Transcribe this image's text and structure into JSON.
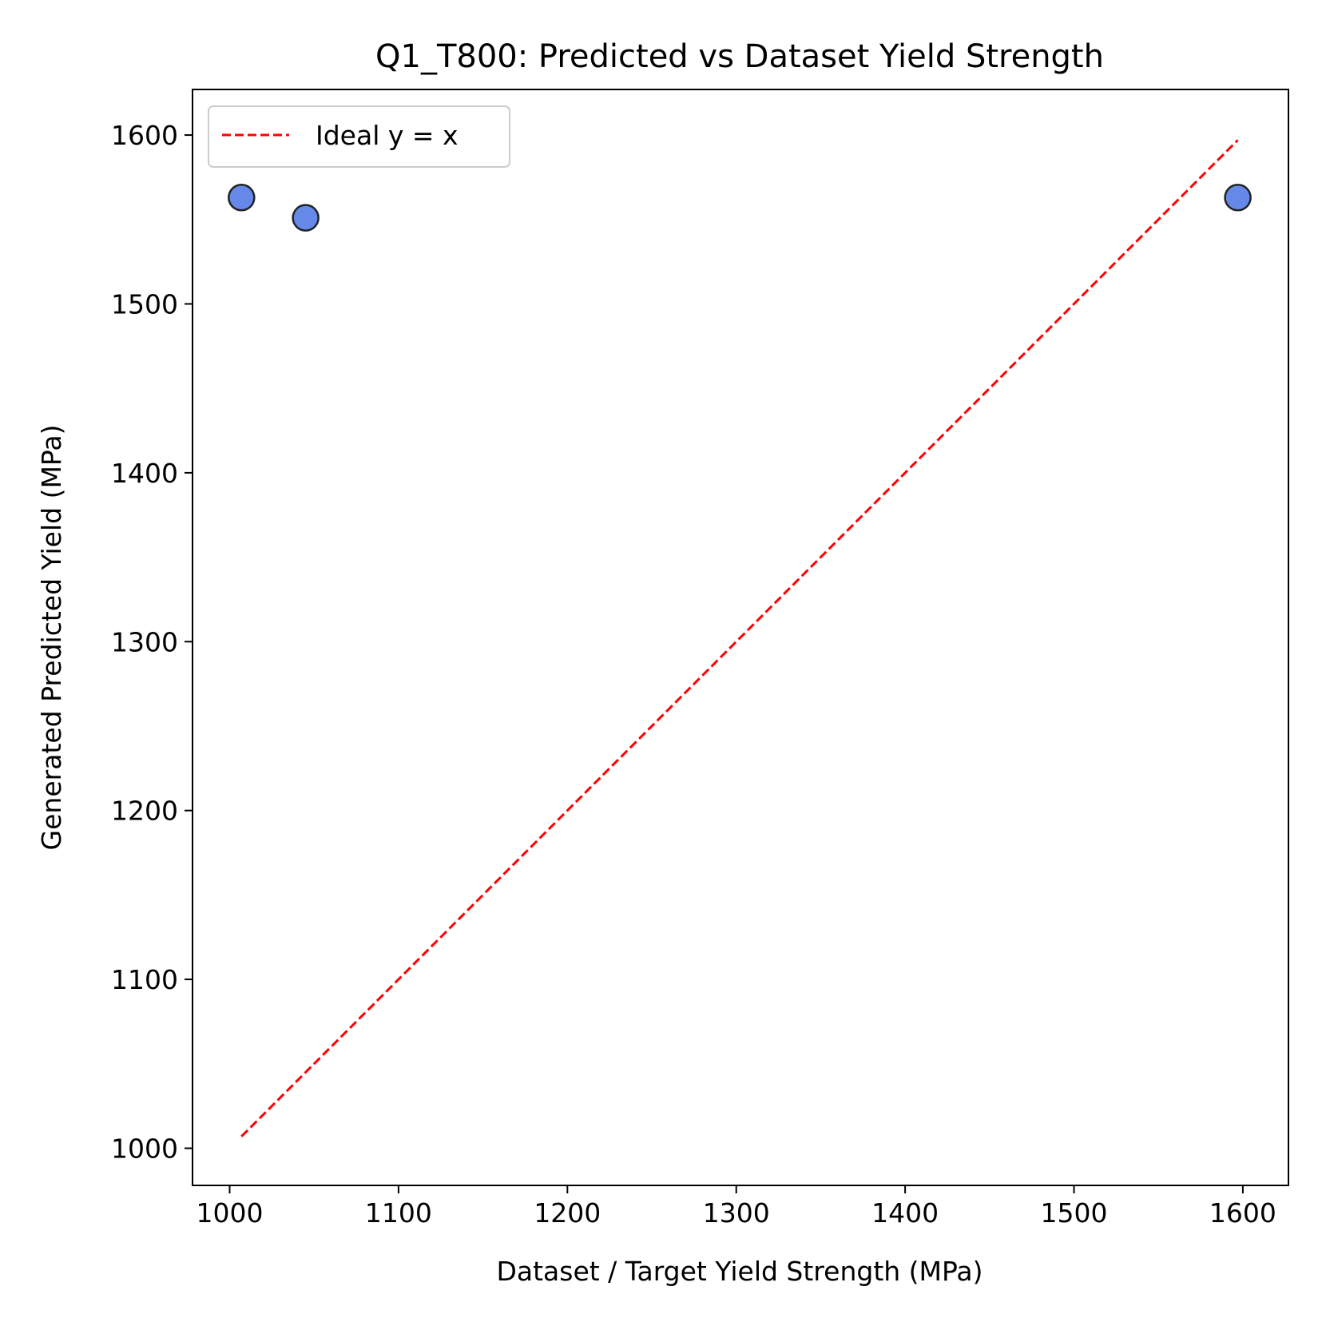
{
  "chart_data": {
    "type": "scatter",
    "title": "Q1_T800: Predicted vs Dataset Yield Strength",
    "xlabel": "Dataset / Target Yield Strength (MPa)",
    "ylabel": "Generated Predicted Yield (MPa)",
    "xlim": [
      978,
      1627
    ],
    "ylim": [
      978,
      1627
    ],
    "xticks": [
      1000,
      1100,
      1200,
      1300,
      1400,
      1500,
      1600
    ],
    "yticks": [
      1000,
      1100,
      1200,
      1300,
      1400,
      1500,
      1600
    ],
    "grid": false,
    "legend_position": "top-left",
    "series": [
      {
        "kind": "scatter",
        "color": "#6688e8",
        "edge_color": "#222222",
        "points": [
          {
            "x": 1007,
            "y": 1563
          },
          {
            "x": 1045,
            "y": 1551
          },
          {
            "x": 1597,
            "y": 1563
          }
        ]
      },
      {
        "kind": "line",
        "name": "Ideal y = x",
        "color": "#ff0000",
        "dashed": true,
        "points": [
          {
            "x": 1007,
            "y": 1007
          },
          {
            "x": 1597,
            "y": 1597
          }
        ]
      }
    ]
  }
}
